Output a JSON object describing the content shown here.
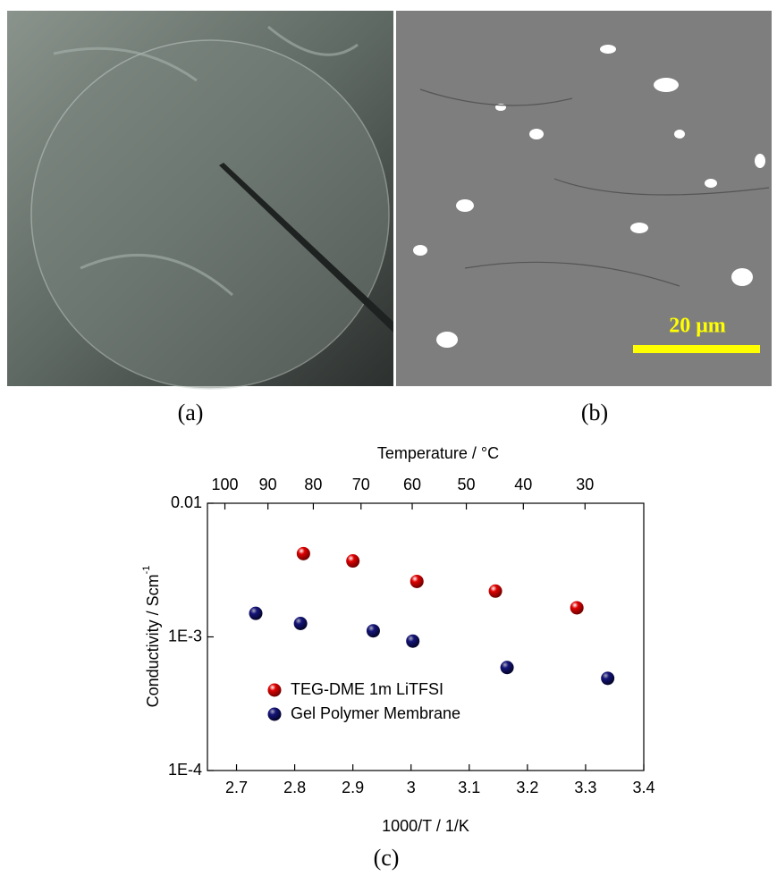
{
  "panels": {
    "a_label": "(a)",
    "b_label": "(b)",
    "scale_bar": "20 μm",
    "c_label": "(c)"
  },
  "chart_data": {
    "type": "scatter",
    "x_label": "1000/T / 1/K",
    "x2_label": "Temperature / °C",
    "y_label": "Conductivity / Scm",
    "y_label_sup": "-1",
    "xlim": [
      2.65,
      3.4
    ],
    "xticks": [
      2.7,
      2.8,
      2.9,
      3.0,
      3.1,
      3.2,
      3.3,
      3.4
    ],
    "x2ticks": [
      {
        "value": 2.68,
        "label": "100"
      },
      {
        "value": 2.754,
        "label": "90"
      },
      {
        "value": 2.832,
        "label": "80"
      },
      {
        "value": 2.914,
        "label": "70"
      },
      {
        "value": 3.002,
        "label": "60"
      },
      {
        "value": 3.095,
        "label": "50"
      },
      {
        "value": 3.193,
        "label": "40"
      },
      {
        "value": 3.299,
        "label": "30"
      }
    ],
    "ylim": [
      0.0001,
      0.01
    ],
    "log_y": true,
    "yticks": [
      {
        "value": 0.0001,
        "label": "1E-4"
      },
      {
        "value": 0.001,
        "label": "1E-3"
      },
      0.01
    ],
    "legend": "lower-left",
    "series": [
      {
        "name": "TEG-DME 1m LiTFSI",
        "color": "#e00000",
        "x": [
          2.815,
          2.9,
          3.01,
          3.145,
          3.285
        ],
        "values": [
          0.0042,
          0.0037,
          0.0026,
          0.0022,
          0.00165
        ]
      },
      {
        "name": "Gel Polymer Membrane",
        "color": "#14147a",
        "x": [
          2.733,
          2.81,
          2.935,
          3.003,
          3.165,
          3.338
        ],
        "values": [
          0.0015,
          0.00126,
          0.00111,
          0.00093,
          0.00059,
          0.00049
        ]
      }
    ]
  }
}
